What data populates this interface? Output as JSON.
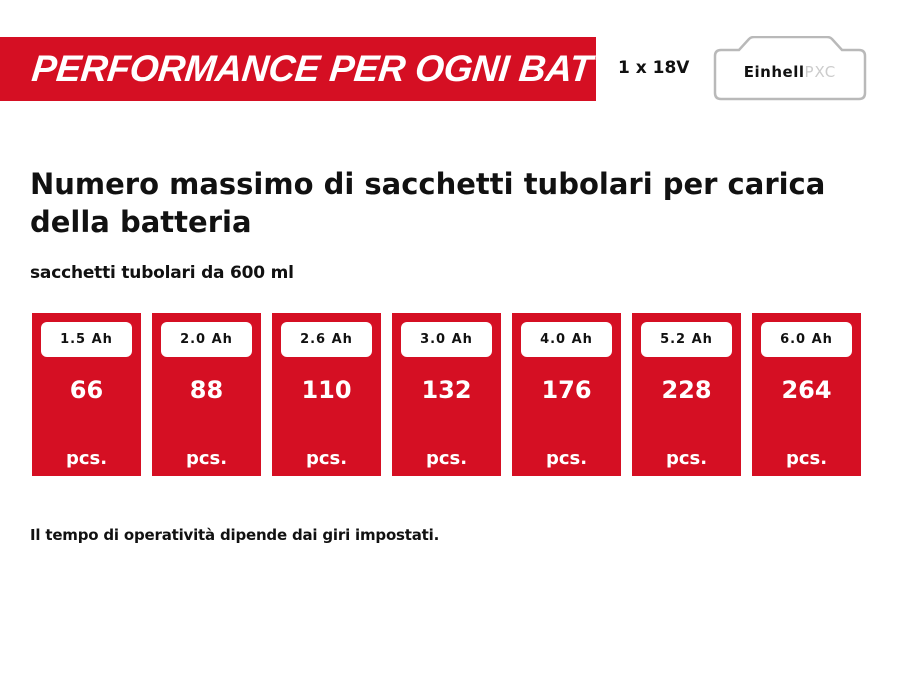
{
  "banner": {
    "title": "PERFORMANCE PER OGNI BATTERIA"
  },
  "battery": {
    "voltage_label": "1 x 18V",
    "brand": "Einhell",
    "line": "PXC",
    "icon": "battery-pack-icon"
  },
  "heading": "Numero massimo di sacchetti tubolari per carica della batteria",
  "subheading": "sacchetti tubolari da 600 ml",
  "cards": [
    {
      "capacity": "1.5 Ah",
      "value": "66",
      "unit": "pcs."
    },
    {
      "capacity": "2.0 Ah",
      "value": "88",
      "unit": "pcs."
    },
    {
      "capacity": "2.6 Ah",
      "value": "110",
      "unit": "pcs."
    },
    {
      "capacity": "3.0 Ah",
      "value": "132",
      "unit": "pcs."
    },
    {
      "capacity": "4.0 Ah",
      "value": "176",
      "unit": "pcs."
    },
    {
      "capacity": "5.2 Ah",
      "value": "228",
      "unit": "pcs."
    },
    {
      "capacity": "6.0 Ah",
      "value": "264",
      "unit": "pcs."
    }
  ],
  "note": "Il tempo di operatività dipende dai giri impostati.",
  "colors": {
    "brand_red": "#d50f23",
    "text": "#111111",
    "background": "#ffffff"
  }
}
